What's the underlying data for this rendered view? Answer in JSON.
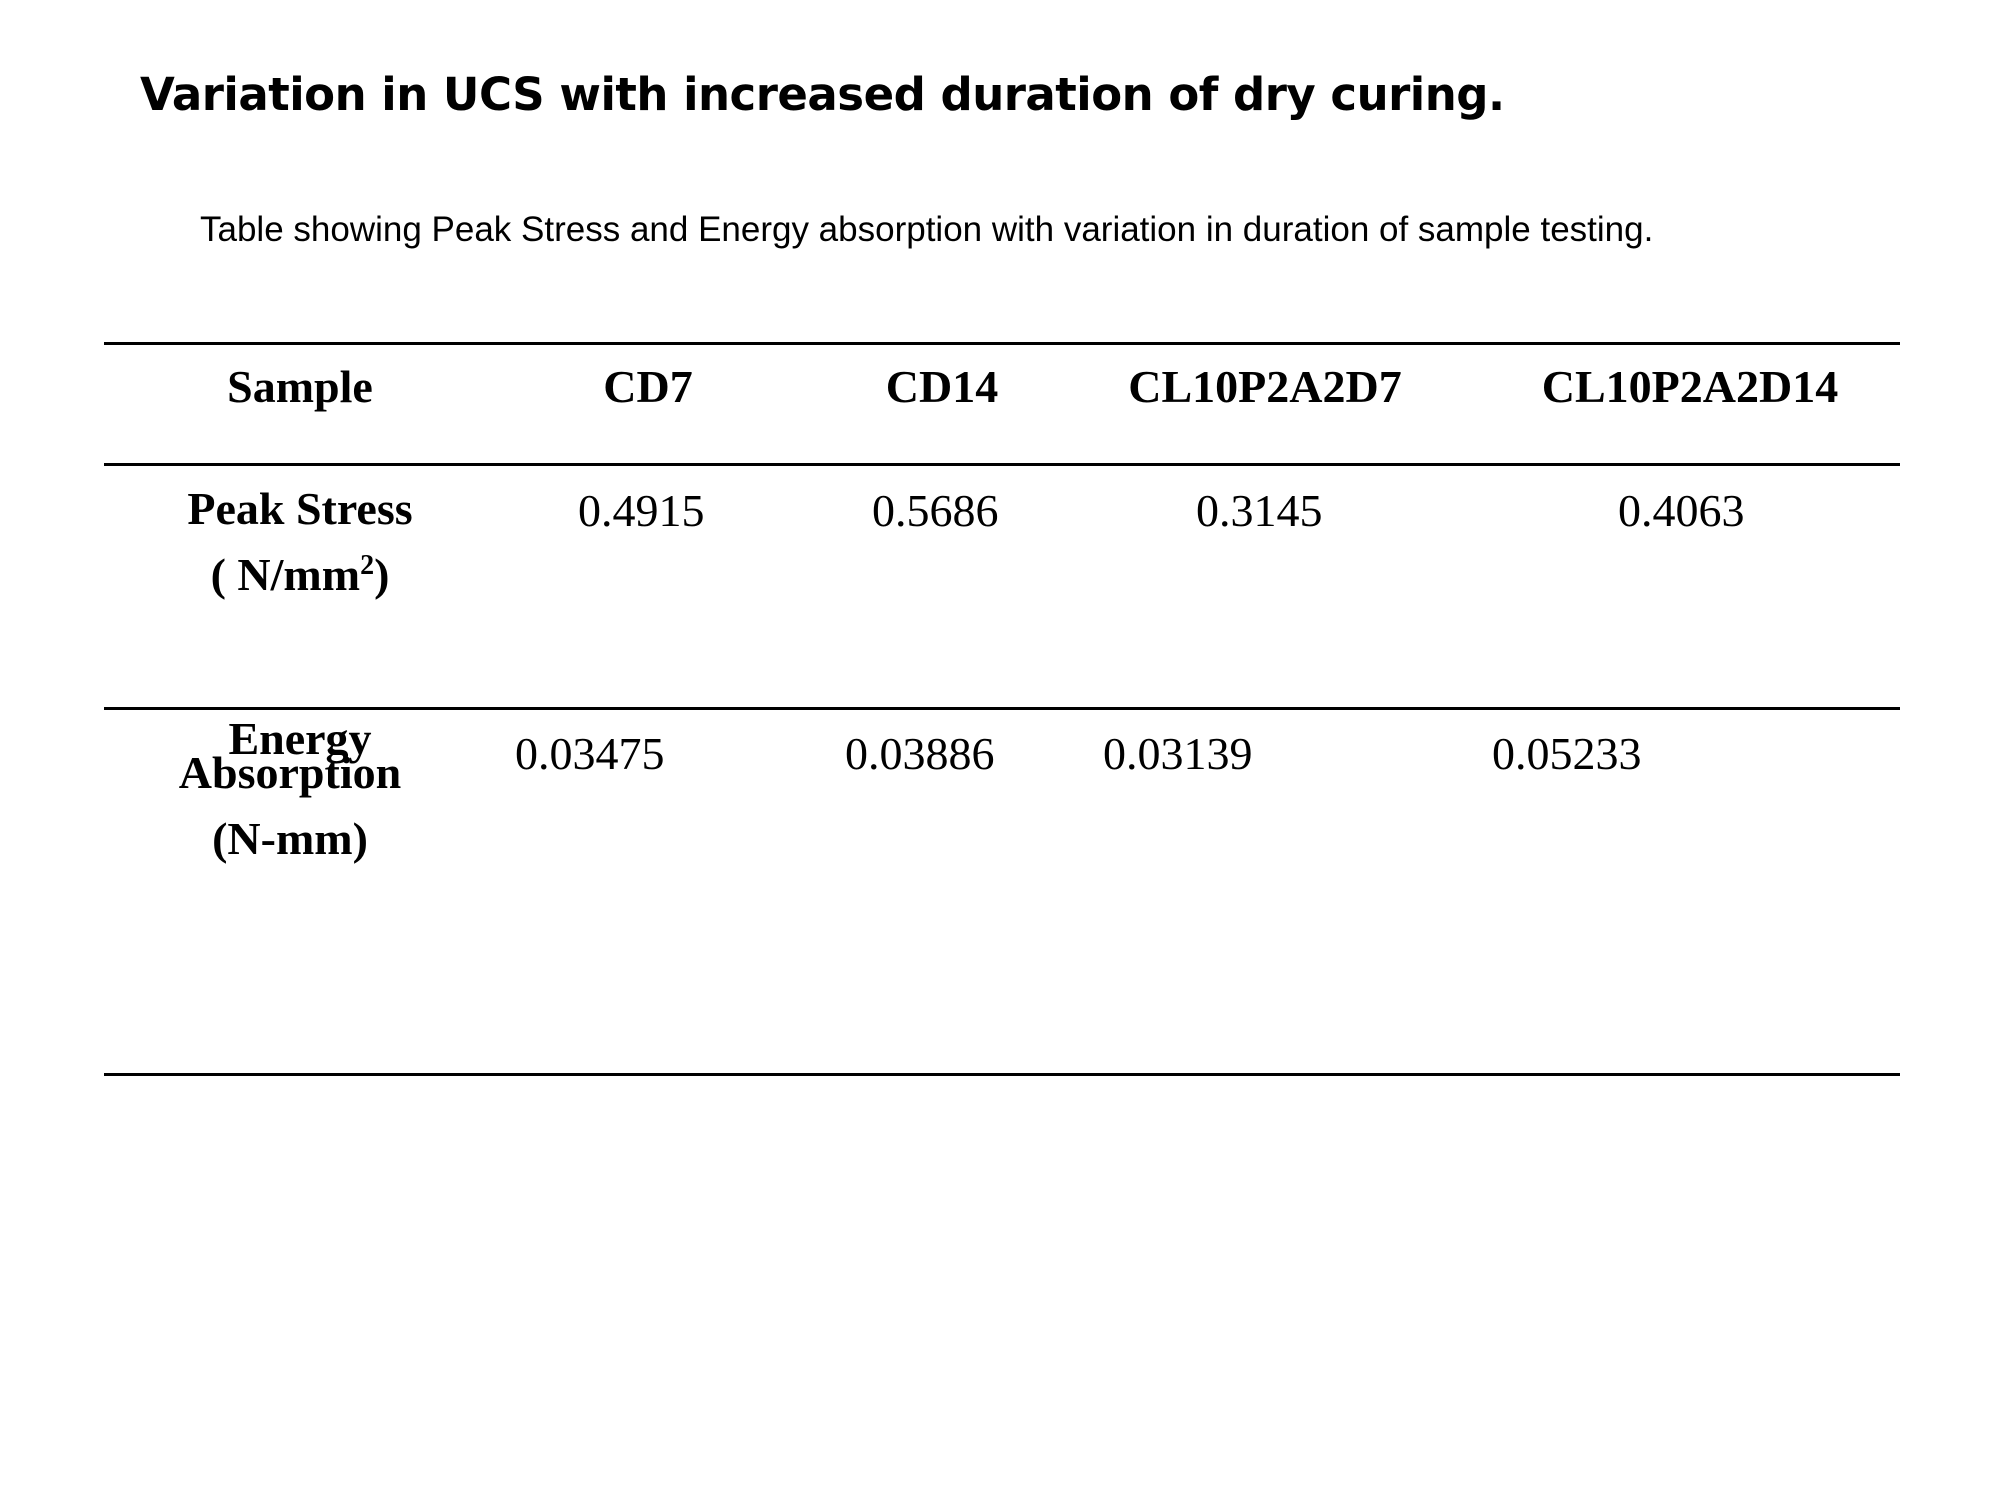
{
  "slide": {
    "title": "Variation in UCS with increased duration of dry curing.",
    "caption": "Table  showing  Peak Stress and Energy absorption with variation in duration of sample testing."
  },
  "table": {
    "header": {
      "sample": "Sample",
      "col1": "CD7",
      "col2": "CD14",
      "col3": "CL10P2A2D7",
      "col4": "CL10P2A2D14"
    },
    "rows": [
      {
        "label_line1": "Peak Stress",
        "label_line2_prefix": "( N/mm",
        "label_line2_sup": "2",
        "label_line2_suffix": ")",
        "values": [
          "0.4915",
          "0.5686",
          "0.3145",
          "0.4063"
        ]
      },
      {
        "label_line1": "Energy",
        "label_line2": "Absorption",
        "label_line3": "(N-mm)",
        "values": [
          "0.03475",
          "0.03886",
          "0.03139",
          "0.05233"
        ]
      }
    ]
  }
}
